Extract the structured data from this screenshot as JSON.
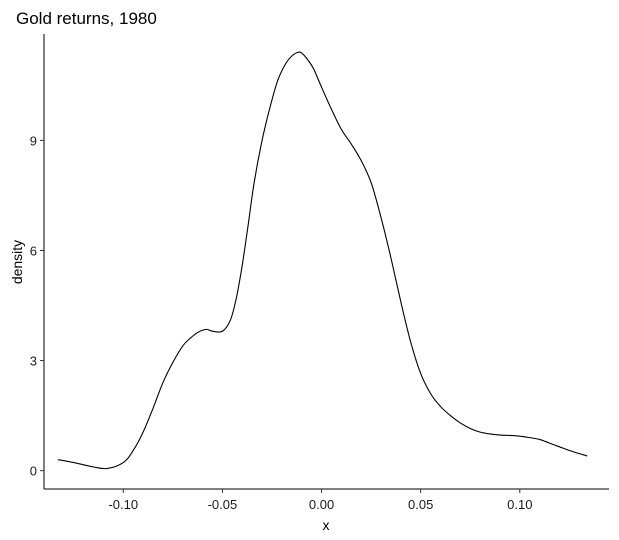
{
  "chart_data": {
    "type": "line",
    "title": "Gold returns, 1980",
    "xlabel": "x",
    "ylabel": "density",
    "xlim": [
      -0.14,
      0.145
    ],
    "ylim": [
      -0.5,
      11.9
    ],
    "x_ticks": [
      -0.1,
      -0.05,
      0.0,
      0.05,
      0.1
    ],
    "x_tick_labels": [
      "-0.10",
      "-0.05",
      "0.00",
      "0.05",
      "0.10"
    ],
    "y_ticks": [
      0,
      3,
      6,
      9
    ],
    "y_tick_labels": [
      "0",
      "3",
      "6",
      "9"
    ],
    "grid": false,
    "legend": "none",
    "line_color": "#000000",
    "series": [
      {
        "x": [
          -0.133,
          -0.125,
          -0.115,
          -0.108,
          -0.1,
          -0.095,
          -0.09,
          -0.085,
          -0.08,
          -0.075,
          -0.07,
          -0.066,
          -0.062,
          -0.058,
          -0.055,
          -0.05,
          -0.046,
          -0.043,
          -0.04,
          -0.037,
          -0.034,
          -0.03,
          -0.026,
          -0.022,
          -0.018,
          -0.015,
          -0.012,
          -0.01,
          -0.007,
          -0.004,
          0.0,
          0.005,
          0.01,
          0.015,
          0.02,
          0.025,
          0.03,
          0.035,
          0.04,
          0.045,
          0.05,
          0.055,
          0.06,
          0.065,
          0.07,
          0.075,
          0.08,
          0.085,
          0.09,
          0.095,
          0.1,
          0.105,
          0.11,
          0.115,
          0.12,
          0.125,
          0.134
        ],
        "y": [
          0.3,
          0.22,
          0.1,
          0.06,
          0.22,
          0.55,
          1.05,
          1.7,
          2.4,
          2.95,
          3.4,
          3.62,
          3.78,
          3.85,
          3.8,
          3.8,
          4.1,
          4.7,
          5.6,
          6.7,
          7.85,
          9.0,
          9.9,
          10.65,
          11.1,
          11.3,
          11.4,
          11.38,
          11.2,
          10.95,
          10.45,
          9.85,
          9.3,
          8.9,
          8.45,
          7.85,
          6.9,
          5.8,
          4.6,
          3.5,
          2.65,
          2.1,
          1.75,
          1.5,
          1.3,
          1.15,
          1.05,
          1.0,
          0.97,
          0.96,
          0.94,
          0.9,
          0.85,
          0.75,
          0.65,
          0.55,
          0.4
        ]
      }
    ]
  }
}
